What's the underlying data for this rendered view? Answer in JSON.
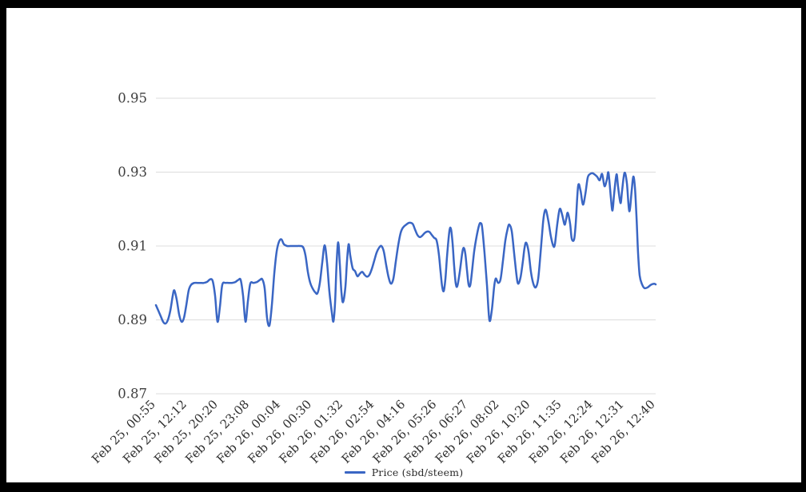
{
  "frame": {
    "border_color": "#000000",
    "page_background": "#ffffff"
  },
  "chart_data": {
    "type": "line",
    "title": "",
    "grid": true,
    "gridline_color": "#dcdcdc",
    "axis_label_color": "#3f3f3f",
    "x_label_color": "#2e2e2e",
    "legend": {
      "position": "bottom",
      "label": "Price (sbd/steem)",
      "swatch_color": "#3a66c4"
    },
    "ylim": [
      0.87,
      0.95
    ],
    "y_tick_labels": [
      "0.95",
      "0.93",
      "0.91",
      "0.89",
      "0.87"
    ],
    "x_tick_labels": [
      "Feb 25, 00:55",
      "Feb 25, 12:12",
      "Feb 25, 20:20",
      "Feb 25, 23:08",
      "Feb 26, 00:04",
      "Feb 26, 00:30",
      "Feb 26, 01:32",
      "Feb 26, 02:54",
      "Feb 26, 04:16",
      "Feb 26, 05:26",
      "Feb 26, 06:27",
      "Feb 26, 08:02",
      "Feb 26, 10:20",
      "Feb 26, 11:35",
      "Feb 26, 12:24",
      "Feb 26, 12:31",
      "Feb 26, 12:40"
    ],
    "series": [
      {
        "name": "Price (sbd/steem)",
        "color": "#3a66c4",
        "points": [
          [
            0.0,
            0.894
          ],
          [
            0.0048,
            0.8925
          ],
          [
            0.0096,
            0.891
          ],
          [
            0.0144,
            0.8895
          ],
          [
            0.0192,
            0.889
          ],
          [
            0.024,
            0.89
          ],
          [
            0.0288,
            0.8925
          ],
          [
            0.0336,
            0.8965
          ],
          [
            0.0368,
            0.898
          ],
          [
            0.0416,
            0.8955
          ],
          [
            0.0464,
            0.8915
          ],
          [
            0.0512,
            0.8895
          ],
          [
            0.056,
            0.8905
          ],
          [
            0.0608,
            0.894
          ],
          [
            0.0656,
            0.898
          ],
          [
            0.0704,
            0.8995
          ],
          [
            0.0768,
            0.9
          ],
          [
            0.0832,
            0.9
          ],
          [
            0.0896,
            0.9
          ],
          [
            0.096,
            0.9
          ],
          [
            0.1024,
            0.9003
          ],
          [
            0.1088,
            0.901
          ],
          [
            0.1136,
            0.9005
          ],
          [
            0.1184,
            0.8965
          ],
          [
            0.1232,
            0.8895
          ],
          [
            0.128,
            0.8935
          ],
          [
            0.1328,
            0.8995
          ],
          [
            0.1392,
            0.9
          ],
          [
            0.1456,
            0.9
          ],
          [
            0.152,
            0.9
          ],
          [
            0.1584,
            0.9002
          ],
          [
            0.1648,
            0.9008
          ],
          [
            0.1696,
            0.9008
          ],
          [
            0.1744,
            0.8965
          ],
          [
            0.1792,
            0.8895
          ],
          [
            0.184,
            0.895
          ],
          [
            0.1888,
            0.8998
          ],
          [
            0.1952,
            0.9
          ],
          [
            0.2016,
            0.9002
          ],
          [
            0.208,
            0.9008
          ],
          [
            0.2128,
            0.901
          ],
          [
            0.2176,
            0.8985
          ],
          [
            0.2224,
            0.8905
          ],
          [
            0.2272,
            0.8885
          ],
          [
            0.232,
            0.894
          ],
          [
            0.2368,
            0.9025
          ],
          [
            0.2416,
            0.9085
          ],
          [
            0.2464,
            0.9112
          ],
          [
            0.2512,
            0.9118
          ],
          [
            0.256,
            0.9105
          ],
          [
            0.2624,
            0.91
          ],
          [
            0.2688,
            0.91
          ],
          [
            0.2752,
            0.91
          ],
          [
            0.2816,
            0.91
          ],
          [
            0.288,
            0.91
          ],
          [
            0.2944,
            0.9097
          ],
          [
            0.2992,
            0.9075
          ],
          [
            0.304,
            0.903
          ],
          [
            0.3088,
            0.9
          ],
          [
            0.3136,
            0.8985
          ],
          [
            0.3184,
            0.8975
          ],
          [
            0.3232,
            0.8972
          ],
          [
            0.328,
            0.9
          ],
          [
            0.3328,
            0.9055
          ],
          [
            0.3376,
            0.9102
          ],
          [
            0.3424,
            0.9055
          ],
          [
            0.3472,
            0.8975
          ],
          [
            0.352,
            0.892
          ],
          [
            0.3552,
            0.8896
          ],
          [
            0.3584,
            0.8945
          ],
          [
            0.3616,
            0.9055
          ],
          [
            0.3648,
            0.911
          ],
          [
            0.368,
            0.905
          ],
          [
            0.3712,
            0.8975
          ],
          [
            0.3744,
            0.8948
          ],
          [
            0.3792,
            0.899
          ],
          [
            0.3824,
            0.906
          ],
          [
            0.3856,
            0.9105
          ],
          [
            0.3888,
            0.9075
          ],
          [
            0.3936,
            0.904
          ],
          [
            0.3984,
            0.9032
          ],
          [
            0.4032,
            0.9018
          ],
          [
            0.408,
            0.9025
          ],
          [
            0.4128,
            0.903
          ],
          [
            0.4176,
            0.9022
          ],
          [
            0.4224,
            0.9017
          ],
          [
            0.4272,
            0.9022
          ],
          [
            0.432,
            0.9038
          ],
          [
            0.4368,
            0.906
          ],
          [
            0.4416,
            0.9082
          ],
          [
            0.4464,
            0.9095
          ],
          [
            0.4512,
            0.91
          ],
          [
            0.456,
            0.9085
          ],
          [
            0.4608,
            0.9048
          ],
          [
            0.4656,
            0.9015
          ],
          [
            0.4704,
            0.8998
          ],
          [
            0.4752,
            0.9012
          ],
          [
            0.48,
            0.9058
          ],
          [
            0.4848,
            0.9102
          ],
          [
            0.4896,
            0.9135
          ],
          [
            0.4944,
            0.915
          ],
          [
            0.5008,
            0.9158
          ],
          [
            0.5072,
            0.9163
          ],
          [
            0.5136,
            0.916
          ],
          [
            0.5184,
            0.9145
          ],
          [
            0.5232,
            0.913
          ],
          [
            0.528,
            0.9124
          ],
          [
            0.5328,
            0.9128
          ],
          [
            0.5376,
            0.9135
          ],
          [
            0.5424,
            0.9139
          ],
          [
            0.5472,
            0.9138
          ],
          [
            0.552,
            0.913
          ],
          [
            0.5568,
            0.9122
          ],
          [
            0.5616,
            0.9115
          ],
          [
            0.5664,
            0.9075
          ],
          [
            0.5696,
            0.903
          ],
          [
            0.5728,
            0.899
          ],
          [
            0.576,
            0.8978
          ],
          [
            0.5792,
            0.901
          ],
          [
            0.5824,
            0.907
          ],
          [
            0.5872,
            0.914
          ],
          [
            0.5904,
            0.9146
          ],
          [
            0.5936,
            0.9108
          ],
          [
            0.5968,
            0.9045
          ],
          [
            0.6,
            0.8998
          ],
          [
            0.6032,
            0.8992
          ],
          [
            0.608,
            0.903
          ],
          [
            0.6128,
            0.908
          ],
          [
            0.616,
            0.9095
          ],
          [
            0.6192,
            0.9078
          ],
          [
            0.6224,
            0.9035
          ],
          [
            0.6256,
            0.8996
          ],
          [
            0.6288,
            0.8993
          ],
          [
            0.632,
            0.9025
          ],
          [
            0.6368,
            0.9085
          ],
          [
            0.6416,
            0.9125
          ],
          [
            0.6464,
            0.9155
          ],
          [
            0.6496,
            0.9162
          ],
          [
            0.6528,
            0.915
          ],
          [
            0.6576,
            0.908
          ],
          [
            0.6624,
            0.8995
          ],
          [
            0.6672,
            0.89
          ],
          [
            0.672,
            0.8925
          ],
          [
            0.6768,
            0.899
          ],
          [
            0.68,
            0.9012
          ],
          [
            0.6848,
            0.9
          ],
          [
            0.6896,
            0.901
          ],
          [
            0.6944,
            0.906
          ],
          [
            0.6992,
            0.9115
          ],
          [
            0.704,
            0.9148
          ],
          [
            0.7072,
            0.9158
          ],
          [
            0.712,
            0.914
          ],
          [
            0.7168,
            0.908
          ],
          [
            0.7216,
            0.902
          ],
          [
            0.7248,
            0.8998
          ],
          [
            0.7296,
            0.9015
          ],
          [
            0.7344,
            0.906
          ],
          [
            0.7376,
            0.9095
          ],
          [
            0.7408,
            0.9109
          ],
          [
            0.7456,
            0.9085
          ],
          [
            0.7504,
            0.903
          ],
          [
            0.7552,
            0.8998
          ],
          [
            0.76,
            0.8988
          ],
          [
            0.7648,
            0.901
          ],
          [
            0.7696,
            0.908
          ],
          [
            0.7744,
            0.916
          ],
          [
            0.7776,
            0.9192
          ],
          [
            0.7808,
            0.9196
          ],
          [
            0.7856,
            0.9165
          ],
          [
            0.7904,
            0.9125
          ],
          [
            0.7952,
            0.91
          ],
          [
            0.7984,
            0.9105
          ],
          [
            0.8032,
            0.916
          ],
          [
            0.808,
            0.92
          ],
          [
            0.8128,
            0.9185
          ],
          [
            0.8176,
            0.9158
          ],
          [
            0.8208,
            0.9172
          ],
          [
            0.824,
            0.919
          ],
          [
            0.8288,
            0.916
          ],
          [
            0.832,
            0.912
          ],
          [
            0.8368,
            0.9118
          ],
          [
            0.84,
            0.916
          ],
          [
            0.8448,
            0.9262
          ],
          [
            0.8496,
            0.925
          ],
          [
            0.8544,
            0.9212
          ],
          [
            0.8592,
            0.924
          ],
          [
            0.864,
            0.9285
          ],
          [
            0.8688,
            0.9295
          ],
          [
            0.8736,
            0.9297
          ],
          [
            0.8784,
            0.9293
          ],
          [
            0.8832,
            0.9287
          ],
          [
            0.888,
            0.9278
          ],
          [
            0.8928,
            0.9295
          ],
          [
            0.8976,
            0.9262
          ],
          [
            0.9024,
            0.928
          ],
          [
            0.9056,
            0.9298
          ],
          [
            0.9104,
            0.923
          ],
          [
            0.9136,
            0.9196
          ],
          [
            0.9168,
            0.924
          ],
          [
            0.9216,
            0.9294
          ],
          [
            0.9248,
            0.926
          ],
          [
            0.9296,
            0.9216
          ],
          [
            0.9328,
            0.925
          ],
          [
            0.9376,
            0.9298
          ],
          [
            0.9424,
            0.927
          ],
          [
            0.9472,
            0.9194
          ],
          [
            0.952,
            0.925
          ],
          [
            0.9552,
            0.9288
          ],
          [
            0.9584,
            0.926
          ],
          [
            0.9616,
            0.918
          ],
          [
            0.9648,
            0.908
          ],
          [
            0.968,
            0.902
          ],
          [
            0.9728,
            0.8996
          ],
          [
            0.9776,
            0.8986
          ],
          [
            0.984,
            0.8988
          ],
          [
            0.9904,
            0.8995
          ],
          [
            0.9968,
            0.8998
          ],
          [
            1.0,
            0.8996
          ]
        ]
      }
    ]
  }
}
